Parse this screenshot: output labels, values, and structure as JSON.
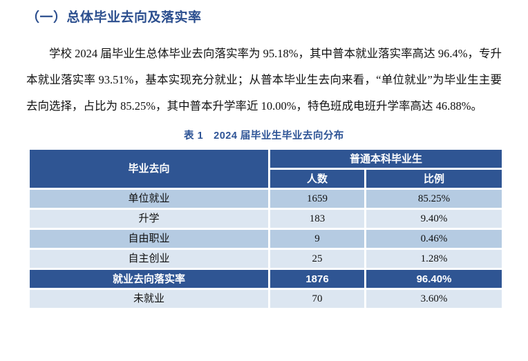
{
  "page": {
    "heading": "（一）总体毕业去向及落实率",
    "paragraph": "学校 2024 届毕业生总体毕业去向落实率为 95.18%，其中普本就业落实率高达 96.4%，专升本就业落实率 93.51%，基本实现充分就业；从普本毕业生去向来看，“单位就业”为毕业生主要去向选择，占比为 85.25%，其中普本升学率近 10.00%，特色班成电班升学率高达 46.88%。",
    "table_caption": "表 1　2024 届毕业生毕业去向分布"
  },
  "table": {
    "col1_header": "毕业去向",
    "group_header": "普通本科毕业生",
    "sub_headers": [
      "人数",
      "比例"
    ],
    "rows": [
      {
        "label": "单位就业",
        "count": "1659",
        "ratio": "85.25%"
      },
      {
        "label": "升学",
        "count": "183",
        "ratio": "9.40%"
      },
      {
        "label": "自由职业",
        "count": "9",
        "ratio": "0.46%"
      },
      {
        "label": "自主创业",
        "count": "25",
        "ratio": "1.28%"
      },
      {
        "label": "就业去向落实率",
        "count": "1876",
        "ratio": "96.40%"
      },
      {
        "label": "未就业",
        "count": "70",
        "ratio": "3.60%"
      }
    ]
  },
  "chart_data": {
    "type": "table",
    "title": "表 1　2024 届毕业生毕业去向分布",
    "columns": [
      "毕业去向",
      "普通本科毕业生-人数",
      "普通本科毕业生-比例"
    ],
    "categories": [
      "单位就业",
      "升学",
      "自由职业",
      "自主创业",
      "就业去向落实率",
      "未就业"
    ],
    "series": [
      {
        "name": "人数",
        "values": [
          1659,
          183,
          9,
          25,
          1876,
          70
        ]
      },
      {
        "name": "比例(%)",
        "values": [
          85.25,
          9.4,
          0.46,
          1.28,
          96.4,
          3.6
        ]
      }
    ]
  },
  "colors": {
    "heading_blue": "#2B4E8E",
    "caption_blue": "#2E5496",
    "header_bg": "#2F5593",
    "row_medium": "#B5CBE2",
    "row_light": "#DCE6F1",
    "body_text": "#111111"
  }
}
